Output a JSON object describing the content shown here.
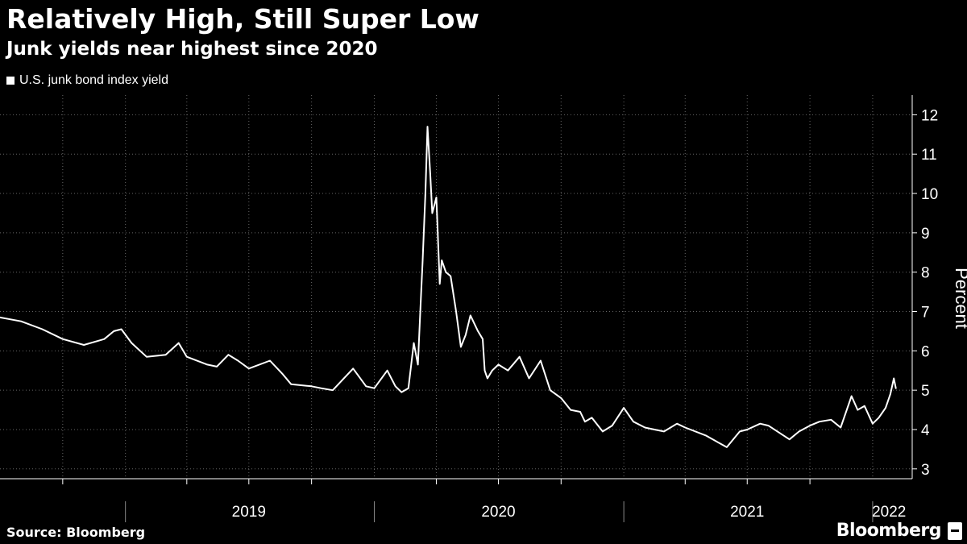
{
  "header": {
    "title": "Relatively High, Still Super Low",
    "subtitle": "Junk yields near highest since 2020"
  },
  "footer": {
    "source": "Source: Bloomberg",
    "brand": "Bloomberg"
  },
  "colors": {
    "background": "#000000",
    "line": "#ffffff",
    "grid": "#666666",
    "text": "#ffffff"
  },
  "chart_data": {
    "type": "line",
    "title": "Relatively High, Still Super Low",
    "subtitle": "Junk yields near highest since 2020",
    "ylabel": "Percent",
    "xlabel": "",
    "ylim": [
      2.75,
      12.5
    ],
    "xlim": [
      "2018-07-01",
      "2022-02-28"
    ],
    "y_ticks": [
      3,
      4,
      5,
      6,
      7,
      8,
      9,
      10,
      11,
      12
    ],
    "x_year_labels": [
      {
        "label": "2019",
        "date": "2019-07-01"
      },
      {
        "label": "2020",
        "date": "2020-07-01"
      },
      {
        "label": "2021",
        "date": "2021-07-01"
      },
      {
        "label": "2022",
        "date": "2022-01-25"
      }
    ],
    "grid": true,
    "legend_position": "top-left",
    "series": [
      {
        "name": "U.S. junk bond index yield",
        "x": [
          "2018-07-01",
          "2018-08-01",
          "2018-09-01",
          "2018-10-01",
          "2018-11-01",
          "2018-12-01",
          "2018-12-15",
          "2018-12-26",
          "2019-01-10",
          "2019-02-01",
          "2019-03-01",
          "2019-03-20",
          "2019-04-01",
          "2019-05-01",
          "2019-05-15",
          "2019-06-01",
          "2019-06-15",
          "2019-07-01",
          "2019-08-01",
          "2019-08-20",
          "2019-09-01",
          "2019-10-01",
          "2019-10-15",
          "2019-11-01",
          "2019-12-01",
          "2019-12-20",
          "2020-01-01",
          "2020-01-20",
          "2020-02-01",
          "2020-02-10",
          "2020-02-20",
          "2020-02-28",
          "2020-03-05",
          "2020-03-09",
          "2020-03-12",
          "2020-03-16",
          "2020-03-19",
          "2020-03-23",
          "2020-03-26",
          "2020-04-01",
          "2020-04-06",
          "2020-04-09",
          "2020-04-15",
          "2020-04-22",
          "2020-04-30",
          "2020-05-07",
          "2020-05-14",
          "2020-05-21",
          "2020-06-01",
          "2020-06-08",
          "2020-06-11",
          "2020-06-15",
          "2020-06-22",
          "2020-07-01",
          "2020-07-15",
          "2020-08-01",
          "2020-08-15",
          "2020-09-01",
          "2020-09-15",
          "2020-10-01",
          "2020-10-15",
          "2020-10-29",
          "2020-11-05",
          "2020-11-15",
          "2020-12-01",
          "2020-12-15",
          "2021-01-01",
          "2021-01-15",
          "2021-02-01",
          "2021-02-15",
          "2021-03-01",
          "2021-03-20",
          "2021-04-01",
          "2021-05-01",
          "2021-06-01",
          "2021-06-20",
          "2021-07-01",
          "2021-07-20",
          "2021-08-01",
          "2021-09-01",
          "2021-09-15",
          "2021-10-01",
          "2021-10-15",
          "2021-11-01",
          "2021-11-15",
          "2021-12-01",
          "2021-12-10",
          "2021-12-20",
          "2022-01-01",
          "2022-01-10",
          "2022-01-20",
          "2022-01-27",
          "2022-02-01",
          "2022-02-04"
        ],
        "values": [
          6.85,
          6.75,
          6.55,
          6.3,
          6.15,
          6.3,
          6.5,
          6.55,
          6.2,
          5.85,
          5.9,
          6.2,
          5.85,
          5.65,
          5.6,
          5.9,
          5.75,
          5.55,
          5.75,
          5.4,
          5.15,
          5.1,
          5.05,
          5.0,
          5.55,
          5.1,
          5.05,
          5.5,
          5.1,
          4.95,
          5.05,
          6.2,
          5.65,
          7.2,
          8.3,
          10.0,
          11.7,
          10.5,
          9.5,
          9.9,
          7.7,
          8.3,
          8.0,
          7.9,
          7.0,
          6.1,
          6.4,
          6.9,
          6.5,
          6.3,
          5.5,
          5.3,
          5.5,
          5.65,
          5.5,
          5.85,
          5.3,
          5.75,
          5.0,
          4.8,
          4.5,
          4.45,
          4.2,
          4.3,
          3.95,
          4.1,
          4.55,
          4.2,
          4.05,
          4.0,
          3.95,
          4.15,
          4.05,
          3.85,
          3.55,
          3.95,
          4.0,
          4.15,
          4.1,
          3.75,
          3.95,
          4.1,
          4.2,
          4.25,
          4.05,
          4.85,
          4.5,
          4.6,
          4.15,
          4.3,
          4.55,
          4.9,
          5.3,
          5.05
        ]
      }
    ]
  }
}
